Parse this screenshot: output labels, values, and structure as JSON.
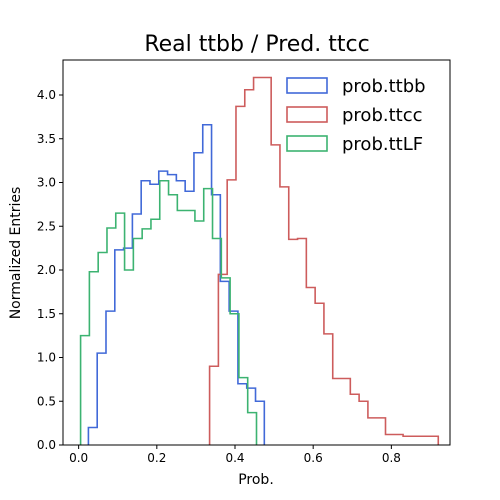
{
  "chart_data": {
    "type": "step-histogram",
    "title": "Real ttbb / Pred. ttcc",
    "xlabel": "Prob.",
    "ylabel": "Normalized Entries",
    "xlim": [
      -0.04,
      0.95
    ],
    "ylim": [
      0.0,
      4.4
    ],
    "xticks": [
      0.0,
      0.2,
      0.4,
      0.6,
      0.8
    ],
    "xtick_labels": [
      "0.0",
      "0.2",
      "0.4",
      "0.6",
      "0.8"
    ],
    "yticks": [
      0.0,
      0.5,
      1.0,
      1.5,
      2.0,
      2.5,
      3.0,
      3.5,
      4.0
    ],
    "ytick_labels": [
      "0.0",
      "0.5",
      "1.0",
      "1.5",
      "2.0",
      "2.5",
      "3.0",
      "3.5",
      "4.0"
    ],
    "grid": false,
    "legend_position": "top-right",
    "series": [
      {
        "name": "prob.ttbb",
        "color": "#4169d8",
        "edges": [
          0.025,
          0.0475,
          0.07,
          0.0925,
          0.115,
          0.1375,
          0.16,
          0.1825,
          0.205,
          0.2275,
          0.25,
          0.2725,
          0.295,
          0.3175,
          0.34,
          0.3625,
          0.385,
          0.4075,
          0.43,
          0.4525,
          0.475
        ],
        "values": [
          0.2,
          1.05,
          1.53,
          2.23,
          2.25,
          2.64,
          3.02,
          2.98,
          3.13,
          3.09,
          3.02,
          2.9,
          3.34,
          3.66,
          2.86,
          1.87,
          1.53,
          0.7,
          0.65,
          0.5
        ]
      },
      {
        "name": "prob.ttcc",
        "color": "#cd5c5c",
        "edges": [
          0.335,
          0.3575,
          0.38,
          0.4025,
          0.425,
          0.4475,
          0.47,
          0.4925,
          0.515,
          0.5375,
          0.56,
          0.5825,
          0.605,
          0.6275,
          0.65,
          0.6725,
          0.695,
          0.7175,
          0.74,
          0.7625,
          0.785,
          0.8075,
          0.83,
          0.8525,
          0.875,
          0.8975,
          0.92
        ],
        "values": [
          0.9,
          1.95,
          3.03,
          3.87,
          4.06,
          4.2,
          4.2,
          3.43,
          2.95,
          2.35,
          2.36,
          1.8,
          1.62,
          1.27,
          0.76,
          0.76,
          0.58,
          0.5,
          0.31,
          0.31,
          0.12,
          0.12,
          0.1,
          0.1,
          0.1,
          0.1
        ]
      },
      {
        "name": "prob.ttLF",
        "color": "#3cb371",
        "edges": [
          0.005,
          0.0275,
          0.05,
          0.0725,
          0.095,
          0.1175,
          0.14,
          0.1625,
          0.185,
          0.2075,
          0.23,
          0.2525,
          0.275,
          0.2975,
          0.32,
          0.3425,
          0.365,
          0.3875,
          0.41,
          0.4325,
          0.455
        ],
        "values": [
          1.25,
          1.98,
          2.2,
          2.48,
          2.65,
          2.0,
          2.36,
          2.47,
          2.58,
          3.02,
          2.86,
          2.68,
          2.68,
          2.56,
          2.93,
          2.36,
          1.91,
          1.5,
          0.77,
          0.37
        ]
      }
    ]
  }
}
